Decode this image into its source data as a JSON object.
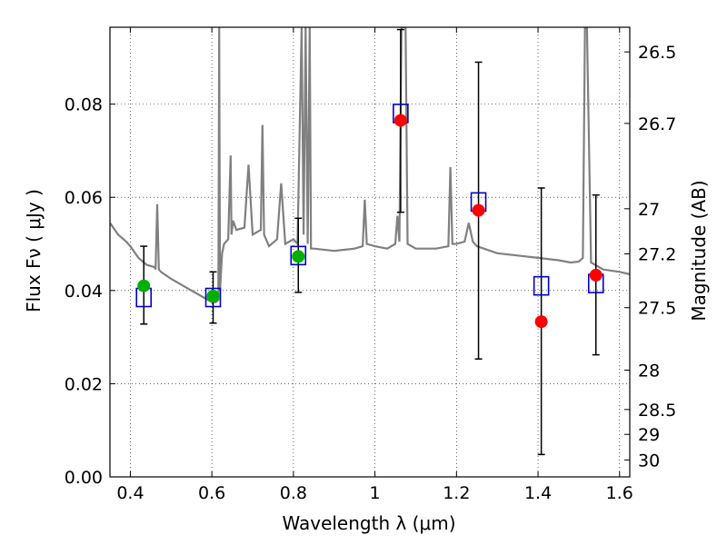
{
  "chart_data": {
    "type": "scatter",
    "xlabel": "Wavelength  λ (μm)",
    "ylabel": "Flux  Fν  ( μJy )",
    "y2label": "Magnitude (AB)",
    "xlim": [
      0.35,
      1.625
    ],
    "ylim": [
      0.0,
      0.0965
    ],
    "grid": true,
    "x_ticks": [
      0.4,
      0.6,
      0.8,
      1.0,
      1.2,
      1.4,
      1.6
    ],
    "x_tick_labels": [
      "0.4",
      "0.6",
      "0.8",
      "1",
      "1.2",
      "1.4",
      "1.6"
    ],
    "y_ticks": [
      0.0,
      0.02,
      0.04,
      0.06,
      0.08
    ],
    "y_tick_labels": [
      "0.00",
      "0.02",
      "0.04",
      "0.06",
      "0.08"
    ],
    "y2_ticks": [
      26.5,
      26.7,
      27,
      27.2,
      27.5,
      28,
      28.5,
      29,
      30
    ],
    "y2_tick_labels": [
      "26.5",
      "26.7",
      "27",
      "27.2",
      "27.5",
      "28",
      "28.5",
      "29",
      "30"
    ],
    "colors": {
      "model": "#808080",
      "model_points": "#0000cc",
      "detections": "#00b000",
      "photometry": "#ff0000",
      "errorbars": "#000000"
    },
    "series": [
      {
        "role": "model_spectrum",
        "style": "line",
        "x": [
          0.35,
          0.37,
          0.39,
          0.4,
          0.42,
          0.44,
          0.46,
          0.462,
          0.466,
          0.47,
          0.475,
          0.5,
          0.54,
          0.58,
          0.6,
          0.61,
          0.616,
          0.618,
          0.62,
          0.625,
          0.63,
          0.64,
          0.646,
          0.648,
          0.652,
          0.66,
          0.68,
          0.69,
          0.7,
          0.72,
          0.724,
          0.728,
          0.74,
          0.76,
          0.77,
          0.78,
          0.8,
          0.81,
          0.82,
          0.825,
          0.83,
          0.835,
          0.84,
          0.843,
          0.85,
          0.9,
          0.95,
          0.97,
          0.975,
          0.98,
          1.0,
          1.03,
          1.05,
          1.055,
          1.06,
          1.065,
          1.07,
          1.075,
          1.08,
          1.09,
          1.1,
          1.15,
          1.18,
          1.185,
          1.19,
          1.2,
          1.22,
          1.23,
          1.24,
          1.25,
          1.3,
          1.35,
          1.4,
          1.45,
          1.48,
          1.5,
          1.51,
          1.515,
          1.52,
          1.53,
          1.56,
          1.6,
          1.625
        ],
        "y": [
          0.0545,
          0.052,
          0.0505,
          0.0495,
          0.047,
          0.0455,
          0.045,
          0.0445,
          0.0585,
          0.0445,
          0.044,
          0.0425,
          0.0405,
          0.0385,
          0.0375,
          0.0375,
          0.038,
          0.0965,
          0.04,
          0.048,
          0.05,
          0.051,
          0.069,
          0.052,
          0.055,
          0.053,
          0.0535,
          0.067,
          0.052,
          0.053,
          0.0755,
          0.052,
          0.0495,
          0.051,
          0.063,
          0.05,
          0.051,
          0.05,
          0.0965,
          0.052,
          0.0965,
          0.05,
          0.0965,
          0.049,
          0.049,
          0.0485,
          0.049,
          0.0495,
          0.0595,
          0.05,
          0.0495,
          0.049,
          0.05,
          0.056,
          0.0505,
          0.0965,
          0.0965,
          0.0965,
          0.05,
          0.0495,
          0.049,
          0.049,
          0.0495,
          0.0665,
          0.05,
          0.05,
          0.0505,
          0.0545,
          0.0505,
          0.0495,
          0.048,
          0.0475,
          0.047,
          0.0465,
          0.046,
          0.0462,
          0.047,
          0.0965,
          0.0965,
          0.046,
          0.0445,
          0.044,
          0.0435
        ]
      },
      {
        "role": "model_band_flux",
        "marker": "open square",
        "x": [
          0.433,
          0.603,
          0.812,
          1.063,
          1.254,
          1.408,
          1.542
        ],
        "y": [
          0.0385,
          0.0385,
          0.0475,
          0.078,
          0.059,
          0.041,
          0.0415
        ]
      },
      {
        "role": "detections",
        "marker": "filled circle",
        "x": [
          0.433,
          0.603,
          0.812
        ],
        "y": [
          0.041,
          0.0388,
          0.0473
        ]
      },
      {
        "role": "photometry",
        "marker": "filled circle",
        "x": [
          1.063,
          1.254,
          1.408,
          1.542
        ],
        "y": [
          0.0765,
          0.0572,
          0.0333,
          0.0433
        ]
      },
      {
        "role": "error_bars",
        "x": [
          0.433,
          0.603,
          0.812,
          1.063,
          1.254,
          1.408,
          1.542
        ],
        "y_low": [
          0.0328,
          0.033,
          0.0396,
          0.0568,
          0.0253,
          0.0048,
          0.0262
        ],
        "y_high": [
          0.0495,
          0.044,
          0.0555,
          0.096,
          0.089,
          0.062,
          0.0605
        ]
      }
    ]
  }
}
